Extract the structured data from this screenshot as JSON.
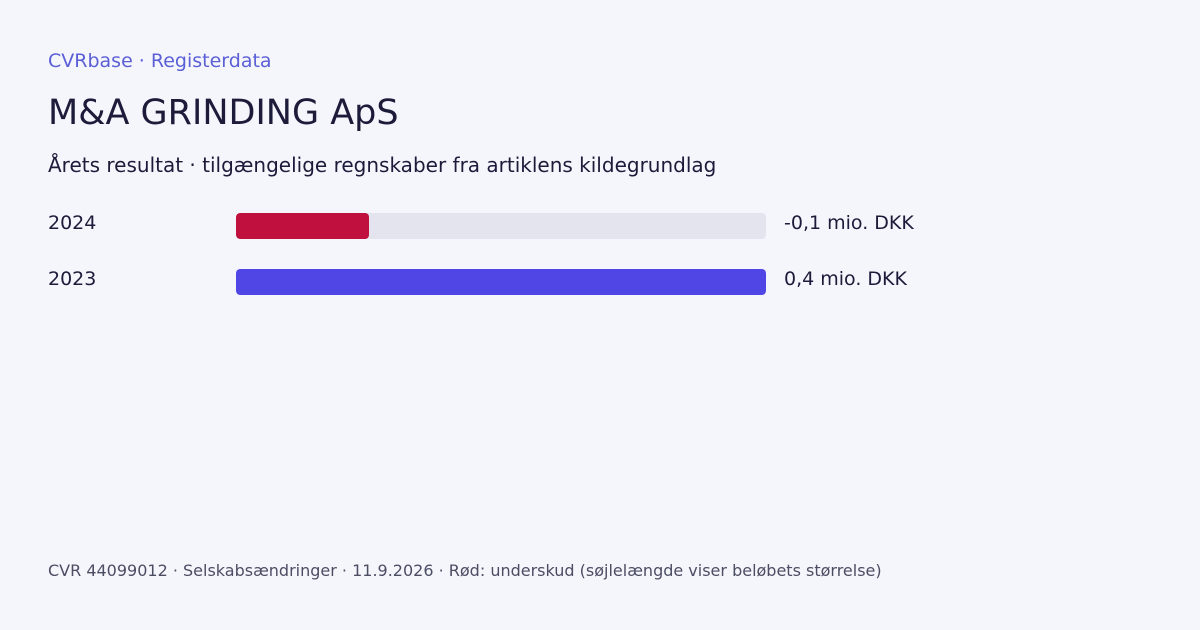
{
  "header": {
    "brand": "CVRbase · Registerdata",
    "company_name": "M&A GRINDING ApS",
    "subtitle": "Årets resultat · tilgængelige regnskaber fra artiklens kildegrundlag"
  },
  "chart_data": {
    "type": "bar",
    "orientation": "horizontal",
    "categories": [
      "2024",
      "2023"
    ],
    "values": [
      -0.1,
      0.4
    ],
    "value_labels": [
      "-0,1 mio. DKK",
      "0,4 mio. DKK"
    ],
    "title": "",
    "xlabel": "",
    "ylabel": "",
    "bar_length_encodes": "absolute value",
    "xlim": [
      0,
      0.4
    ],
    "grid": false,
    "legend": "none"
  },
  "colors": {
    "background": "#f5f6fc",
    "accent": "#5b5fd6",
    "positive": "#4f46e5",
    "negative": "#c0103d",
    "track": "#e3e4ee",
    "text": "#1c1b3a",
    "muted_text": "#4b4d63"
  },
  "footer": {
    "text": "CVR 44099012 · Selskabsændringer · 11.9.2026 · Rød: underskud (søjlelængde viser beløbets størrelse)"
  }
}
